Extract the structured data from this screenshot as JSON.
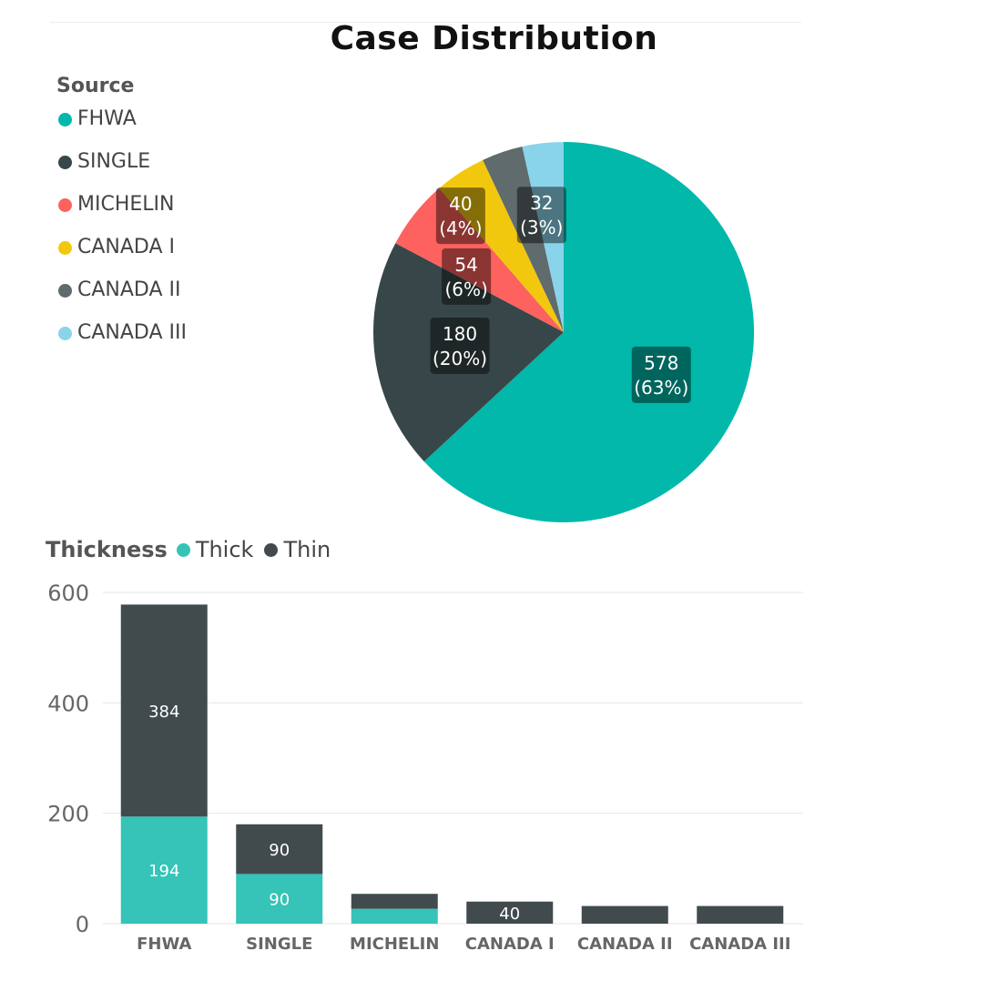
{
  "colors": {
    "thick": "#35c4b7",
    "thin": "#414b4e",
    "grid": "#e6e6e6",
    "label_box_text": "#ffffff"
  },
  "pie_chart": {
    "title": "Case Distribution",
    "legend_title": "Source",
    "legend": [
      {
        "label": "FHWA",
        "color": "#01b8aa"
      },
      {
        "label": "SINGLE",
        "color": "#374649"
      },
      {
        "label": "MICHELIN",
        "color": "#fd625e"
      },
      {
        "label": "CANADA I",
        "color": "#f2c80f"
      },
      {
        "label": "CANADA II",
        "color": "#5f6b6d"
      },
      {
        "label": "CANADA III",
        "color": "#8ad4eb"
      }
    ]
  },
  "bar_chart": {
    "legend_title": "Thickness",
    "legend": [
      {
        "label": "Thick",
        "color": "#35c4b7"
      },
      {
        "label": "Thin",
        "color": "#414b4e"
      }
    ],
    "y_ticks": [
      "600",
      "400",
      "200",
      "0"
    ]
  },
  "chart_data": [
    {
      "type": "pie",
      "title": "Case Distribution",
      "legend_title": "Source",
      "slices": [
        {
          "label": "FHWA",
          "value": 578,
          "percent": "63%",
          "color": "#01b8aa"
        },
        {
          "label": "SINGLE",
          "value": 180,
          "percent": "20%",
          "color": "#374649"
        },
        {
          "label": "MICHELIN",
          "value": 54,
          "percent": "6%",
          "color": "#fd625e"
        },
        {
          "label": "CANADA I",
          "value": 40,
          "percent": "4%",
          "color": "#f2c80f"
        },
        {
          "label": "CANADA II",
          "value": 32,
          "percent": "3%",
          "color": "#5f6b6d"
        },
        {
          "label": "CANADA III",
          "value": 32,
          "percent": "3%",
          "color": "#8ad4eb"
        }
      ],
      "data_labels": [
        {
          "label": "FHWA",
          "text": "578",
          "pct": "(63%)"
        },
        {
          "label": "SINGLE",
          "text": "180",
          "pct": "(20%)"
        },
        {
          "label": "MICHELIN",
          "text": "54",
          "pct": "(6%)"
        },
        {
          "label": "CANADA I",
          "text": "40",
          "pct": "(4%)"
        },
        {
          "label": "CANADA III",
          "text": "32",
          "pct": "(3%)"
        }
      ]
    },
    {
      "type": "bar",
      "stacked": true,
      "legend_title": "Thickness",
      "categories": [
        "FHWA",
        "SINGLE",
        "MICHELIN",
        "CANADA I",
        "CANADA II",
        "CANADA III"
      ],
      "series": [
        {
          "name": "Thick",
          "values": [
            194,
            90,
            27,
            0,
            0,
            0
          ],
          "color": "#35c4b7"
        },
        {
          "name": "Thin",
          "values": [
            384,
            90,
            27,
            40,
            32,
            32
          ],
          "color": "#414b4e"
        }
      ],
      "data_labels": {
        "Thick": [
          "194",
          "90",
          "",
          "",
          "",
          ""
        ],
        "Thin": [
          "384",
          "90",
          "",
          "40",
          "",
          ""
        ]
      },
      "ylim": [
        0,
        600
      ],
      "y_ticks": [
        0,
        200,
        400,
        600
      ],
      "grid": true
    }
  ]
}
